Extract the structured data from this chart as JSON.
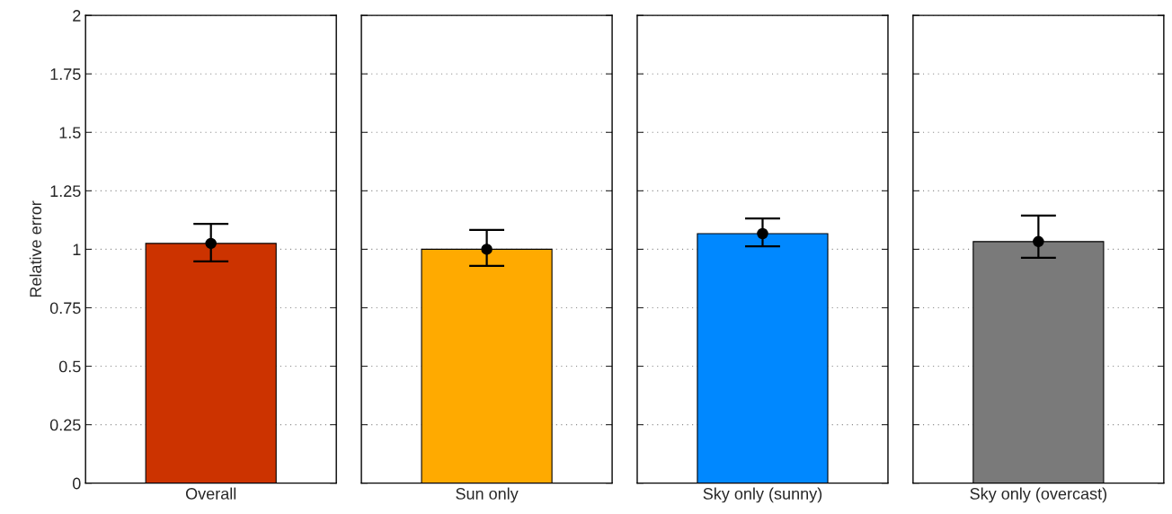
{
  "chart_data": [
    {
      "type": "bar",
      "categories": [
        "Overall"
      ],
      "ylabel": "Relative error",
      "ylim": [
        0,
        2
      ],
      "yticks": [
        0,
        0.25,
        0.5,
        0.75,
        1,
        1.25,
        1.5,
        1.75,
        2
      ],
      "grid": "y",
      "series": [
        {
          "color": "#cc3300",
          "values": [
            1.025
          ]
        },
        {
          "type": "scatter",
          "color": "#000000",
          "marker": "circle",
          "values": [
            1.025
          ],
          "errors": [
            [
              0.948,
              1.109
            ]
          ]
        }
      ]
    },
    {
      "type": "bar",
      "categories": [
        "Sun only"
      ],
      "ylim": [
        0,
        2
      ],
      "yticks": [
        0,
        0.25,
        0.5,
        0.75,
        1,
        1.25,
        1.5,
        1.75,
        2
      ],
      "grid": "y",
      "tick_labels": "x",
      "series": [
        {
          "color": "#ffaa00",
          "values": [
            1.0
          ]
        },
        {
          "type": "scatter",
          "color": "#000000",
          "marker": "circle",
          "values": [
            1.0
          ],
          "errors": [
            [
              0.929,
              1.083
            ]
          ]
        }
      ]
    },
    {
      "type": "bar",
      "categories": [
        "Sky only (sunny)"
      ],
      "ylim": [
        0,
        2
      ],
      "yticks": [
        0,
        0.25,
        0.5,
        0.75,
        1,
        1.25,
        1.5,
        1.75,
        2
      ],
      "grid": "y",
      "tick_labels": "x",
      "series": [
        {
          "color": "#0088ff",
          "values": [
            1.067
          ]
        },
        {
          "type": "scatter",
          "color": "#000000",
          "marker": "circle",
          "values": [
            1.067
          ],
          "errors": [
            [
              1.013,
              1.132
            ]
          ]
        }
      ]
    },
    {
      "type": "bar",
      "categories": [
        "Sky only (overcast)"
      ],
      "ylim": [
        0,
        2
      ],
      "yticks": [
        0,
        0.25,
        0.5,
        0.75,
        1,
        1.25,
        1.5,
        1.75,
        2
      ],
      "grid": "y",
      "tick_labels": "x",
      "series": [
        {
          "color": "#7a7a7a",
          "values": [
            1.033
          ]
        },
        {
          "type": "scatter",
          "color": "#000000",
          "marker": "circle",
          "values": [
            1.033
          ],
          "errors": [
            [
              0.964,
              1.144
            ]
          ]
        }
      ]
    }
  ]
}
